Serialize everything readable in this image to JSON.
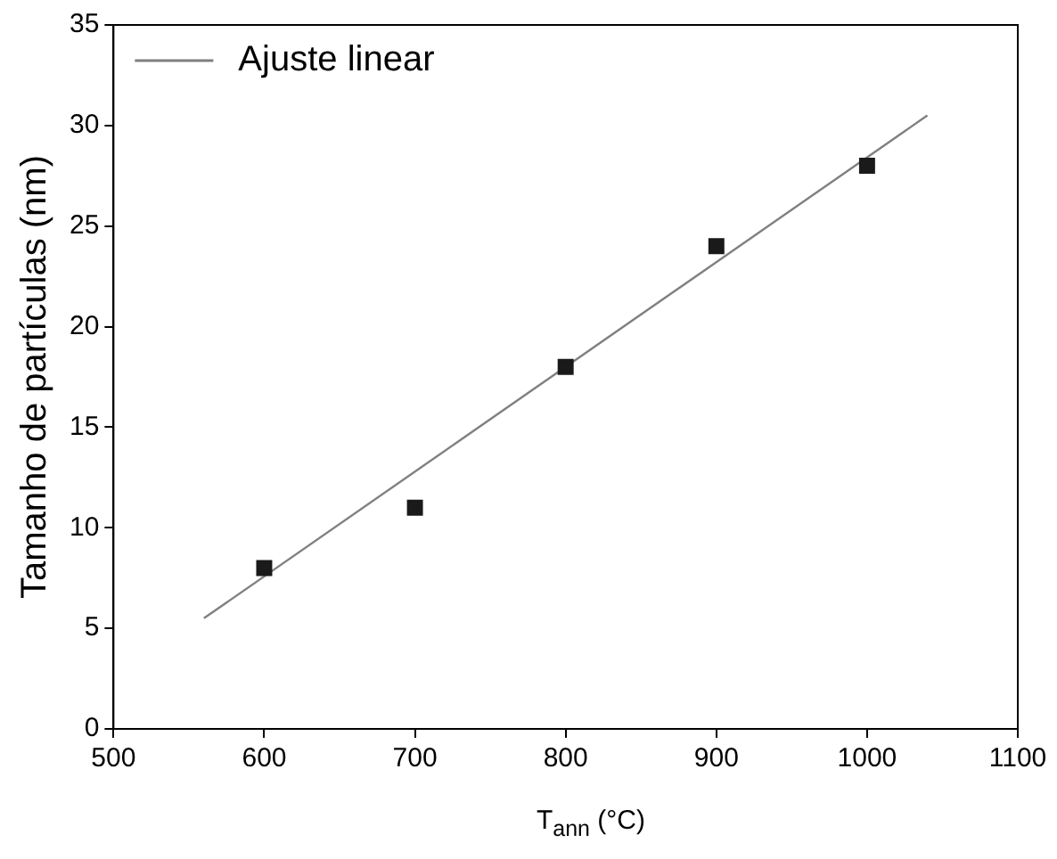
{
  "chart_data": {
    "type": "scatter",
    "xlabel": "T$_{ann}$ (°C)",
    "ylabel": "Tamanho de partículas (nm)",
    "x": [
      600,
      700,
      800,
      900,
      1000
    ],
    "series": [
      {
        "color": "#1a1a1a",
        "values": [
          8,
          11,
          18,
          24,
          28
        ],
        "marker": "square"
      },
      {
        "type": "line",
        "name": "Ajuste linear",
        "color": "#808080",
        "x": [
          560,
          1040
        ],
        "values": [
          5.5,
          30.5
        ],
        "marker": "none",
        "line_style": "solid"
      }
    ],
    "xlim": [
      500,
      1100
    ],
    "xticks": [
      500,
      600,
      700,
      800,
      900,
      1000,
      1100
    ],
    "ylim": [
      0,
      35
    ],
    "yticks": [
      0,
      5,
      10,
      15,
      20,
      25,
      30,
      35
    ],
    "grid": false,
    "legend": "top left"
  }
}
